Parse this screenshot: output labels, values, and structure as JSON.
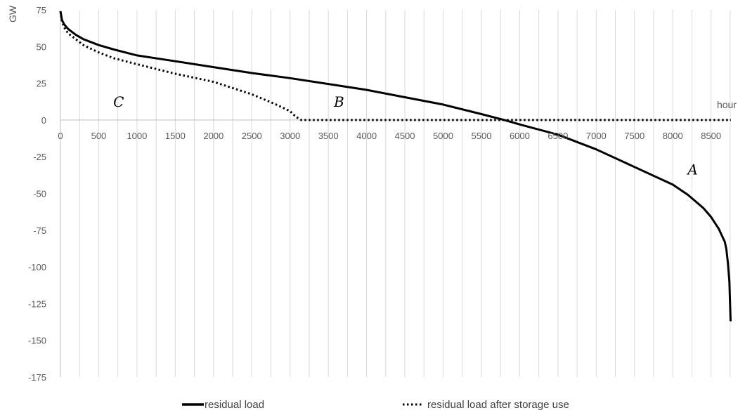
{
  "chart_data": {
    "type": "line",
    "title": "",
    "xlabel": "hour",
    "ylabel": "GW",
    "xlim": [
      0,
      8760
    ],
    "ylim": [
      -175,
      75
    ],
    "x_ticks": [
      0,
      500,
      1000,
      1500,
      2000,
      2500,
      3000,
      3500,
      4000,
      4500,
      5000,
      5500,
      6000,
      6500,
      7000,
      7500,
      8000,
      8500
    ],
    "y_ticks": [
      75,
      50,
      25,
      0,
      -25,
      -50,
      -75,
      -100,
      -125,
      -150,
      -175
    ],
    "grid": "vertical",
    "legend_position": "bottom",
    "series": [
      {
        "name": "residual load",
        "style": "solid",
        "color": "#000000",
        "x": [
          0,
          20,
          50,
          100,
          200,
          300,
          500,
          700,
          1000,
          1500,
          2000,
          2500,
          3000,
          3500,
          4000,
          4500,
          5000,
          5500,
          5800,
          6000,
          6500,
          7000,
          7500,
          8000,
          8200,
          8400,
          8500,
          8600,
          8680,
          8700,
          8720,
          8740,
          8755
        ],
        "y": [
          74,
          68,
          65,
          62,
          58,
          55,
          51,
          48,
          44,
          40,
          36,
          32,
          28.5,
          24.5,
          20.5,
          15.5,
          10.5,
          4,
          0,
          -3,
          -10,
          -20,
          -32,
          -44,
          -51,
          -60,
          -66,
          -74,
          -83,
          -88,
          -97,
          -110,
          -137
        ]
      },
      {
        "name": "residual load after storage use",
        "style": "dotted",
        "color": "#000000",
        "x": [
          0,
          20,
          50,
          100,
          200,
          300,
          500,
          700,
          1000,
          1500,
          2000,
          2500,
          2800,
          3000,
          3080,
          3150,
          3500,
          4000,
          5000,
          6000,
          7000,
          8000,
          8500,
          8760
        ],
        "y": [
          74,
          67,
          63,
          59,
          55,
          51,
          46,
          42,
          38,
          31.5,
          26,
          17.5,
          11,
          6,
          2,
          0,
          0,
          0,
          0,
          0,
          0,
          0,
          0,
          0
        ]
      }
    ],
    "annotations": [
      {
        "text": "A",
        "x": 8260,
        "y": -37
      },
      {
        "text": "B",
        "x": 3640,
        "y": 9
      },
      {
        "text": "C",
        "x": 760,
        "y": 9
      }
    ]
  }
}
